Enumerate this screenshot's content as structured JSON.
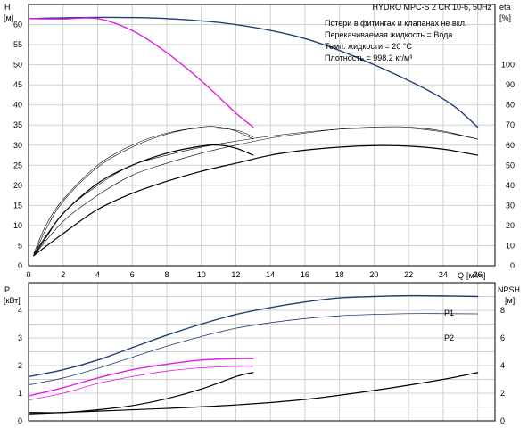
{
  "title": "HYDRO MPC-S 2 CR 10-6, 50Hz",
  "notes": [
    "Потери в фитингах и клапанах не вкл.",
    "Перекачиваемая жидкость = Вода",
    "Темп. жидкости = 20 °C",
    "Плотность = 998.2 кг/м³"
  ],
  "colors": {
    "navy": "#1f3f73",
    "black": "#000000",
    "magenta": "#e020e0",
    "grid": "#cfcfcf"
  },
  "chart_data": [
    {
      "type": "line",
      "name": "top",
      "x_label": "Q",
      "x_unit": "[м³/ч]",
      "x_range": [
        0,
        27
      ],
      "x_ticks": [
        "0",
        "2",
        "4",
        "6",
        "8",
        "10",
        "12",
        "14",
        "16",
        "18",
        "20",
        "22",
        "24",
        "26"
      ],
      "x_tick_values": [
        0,
        2,
        4,
        6,
        8,
        10,
        12,
        14,
        16,
        18,
        20,
        22,
        24,
        26
      ],
      "y_left_label": "H",
      "y_left_unit": "[м]",
      "y_left_range": [
        0,
        65
      ],
      "y_left_ticks": [
        "0",
        "5",
        "10",
        "15",
        "20",
        "25",
        "30",
        "35",
        "40",
        "45",
        "50",
        "55",
        "60"
      ],
      "y_right_label": "eta",
      "y_right_unit": "[%]",
      "y_right_range": [
        0,
        130
      ],
      "y_right_ticks": [
        "0",
        "10",
        "20",
        "30",
        "40",
        "50",
        "60",
        "70",
        "80",
        "90",
        "100"
      ],
      "series": [
        {
          "color": "navy",
          "width": 1.4,
          "axis": "left",
          "points": [
            [
              0,
              61.5
            ],
            [
              4,
              61.8
            ],
            [
              8,
              61.5
            ],
            [
              12,
              60
            ],
            [
              16,
              56.5
            ],
            [
              20,
              50
            ],
            [
              24,
              41.5
            ],
            [
              26,
              34.5
            ]
          ]
        },
        {
          "color": "magenta",
          "width": 1.4,
          "axis": "left",
          "points": [
            [
              0,
              61.5
            ],
            [
              2,
              61.4
            ],
            [
              4,
              61.5
            ],
            [
              6,
              58.5
            ],
            [
              8,
              53
            ],
            [
              10,
              46
            ],
            [
              12,
              38
            ],
            [
              13,
              34.5
            ]
          ]
        },
        {
          "color": "black",
          "width": 1.2,
          "axis": "right",
          "points": [
            [
              0.3,
              5
            ],
            [
              1,
              14
            ],
            [
              2,
              26
            ],
            [
              4,
              41
            ],
            [
              6,
              50
            ],
            [
              8,
              56
            ],
            [
              10,
              59.5
            ],
            [
              11,
              60
            ],
            [
              12,
              58.5
            ],
            [
              13,
              55
            ]
          ]
        },
        {
          "color": "black",
          "width": 0.6,
          "axis": "right",
          "points": [
            [
              0.3,
              5
            ],
            [
              1,
              18
            ],
            [
              2,
              32
            ],
            [
              4,
              49
            ],
            [
              6,
              59
            ],
            [
              8,
              65.5
            ],
            [
              10,
              69
            ],
            [
              11,
              69
            ],
            [
              12,
              67
            ],
            [
              13,
              63
            ]
          ]
        },
        {
          "color": "black",
          "width": 1.2,
          "axis": "right",
          "points": [
            [
              0.3,
              5
            ],
            [
              2,
              16
            ],
            [
              4,
              28
            ],
            [
              6,
              36
            ],
            [
              8,
              42
            ],
            [
              10,
              47
            ],
            [
              12,
              51
            ],
            [
              14,
              55
            ],
            [
              16,
              57.5
            ],
            [
              18,
              59
            ],
            [
              20,
              59.8
            ],
            [
              22,
              59.5
            ],
            [
              24,
              58
            ],
            [
              26,
              55
            ]
          ]
        },
        {
          "color": "black",
          "width": 0.6,
          "axis": "right",
          "points": [
            [
              0.3,
              5
            ],
            [
              2,
              22
            ],
            [
              4,
              35
            ],
            [
              6,
              45
            ],
            [
              8,
              51
            ],
            [
              10,
              56
            ],
            [
              12,
              60
            ],
            [
              14,
              63.5
            ],
            [
              16,
              66
            ],
            [
              18,
              68
            ],
            [
              20,
              69
            ],
            [
              22,
              69
            ],
            [
              24,
              67
            ],
            [
              26,
              63
            ]
          ]
        },
        {
          "color": "black",
          "width": 0.6,
          "axis": "right",
          "points": [
            [
              0.3,
              6
            ],
            [
              1,
              20
            ],
            [
              2,
              33
            ],
            [
              4,
              50
            ],
            [
              6,
              60
            ],
            [
              8,
              66
            ],
            [
              10,
              68.5
            ],
            [
              12,
              67.5
            ],
            [
              13,
              64
            ]
          ]
        },
        {
          "color": "black",
          "width": 0.6,
          "axis": "right",
          "points": [
            [
              0.3,
              6
            ],
            [
              2,
              26
            ],
            [
              4,
              40
            ],
            [
              6,
              50
            ],
            [
              8,
              55
            ],
            [
              10,
              59
            ],
            [
              12,
              62
            ],
            [
              14,
              64.5
            ],
            [
              16,
              66.5
            ],
            [
              18,
              68
            ],
            [
              20,
              68.5
            ],
            [
              22,
              68.5
            ],
            [
              24,
              66.5
            ],
            [
              26,
              63
            ]
          ]
        }
      ]
    },
    {
      "type": "line",
      "name": "bottom",
      "x_range": [
        0,
        27
      ],
      "y_left_label": "P",
      "y_left_unit": "[кВт]",
      "y_left_range": [
        0,
        5
      ],
      "y_left_ticks": [
        "0",
        "1",
        "2",
        "3",
        "4"
      ],
      "y_right_label": "NPSH",
      "y_right_unit": "[м]",
      "y_right_range": [
        0,
        10
      ],
      "y_right_ticks": [
        "0",
        "2",
        "4",
        "6",
        "8"
      ],
      "series": [
        {
          "color": "navy",
          "width": 1.4,
          "axis": "left",
          "label": "P1",
          "points": [
            [
              0,
              1.6
            ],
            [
              2,
              1.85
            ],
            [
              4,
              2.2
            ],
            [
              6,
              2.65
            ],
            [
              8,
              3.1
            ],
            [
              10,
              3.5
            ],
            [
              12,
              3.85
            ],
            [
              14,
              4.1
            ],
            [
              16,
              4.3
            ],
            [
              18,
              4.45
            ],
            [
              20,
              4.5
            ],
            [
              22,
              4.53
            ],
            [
              24,
              4.52
            ],
            [
              26,
              4.5
            ]
          ]
        },
        {
          "color": "navy",
          "width": 0.8,
          "axis": "left",
          "label": "P2",
          "points": [
            [
              0,
              1.3
            ],
            [
              2,
              1.55
            ],
            [
              4,
              1.9
            ],
            [
              6,
              2.3
            ],
            [
              8,
              2.7
            ],
            [
              10,
              3.05
            ],
            [
              12,
              3.35
            ],
            [
              14,
              3.55
            ],
            [
              16,
              3.7
            ],
            [
              18,
              3.8
            ],
            [
              20,
              3.85
            ],
            [
              22,
              3.88
            ],
            [
              24,
              3.88
            ],
            [
              26,
              3.87
            ]
          ]
        },
        {
          "color": "magenta",
          "width": 1.4,
          "axis": "left",
          "points": [
            [
              0,
              0.9
            ],
            [
              2,
              1.2
            ],
            [
              4,
              1.55
            ],
            [
              6,
              1.85
            ],
            [
              8,
              2.05
            ],
            [
              10,
              2.2
            ],
            [
              12,
              2.25
            ],
            [
              13,
              2.25
            ]
          ]
        },
        {
          "color": "magenta",
          "width": 0.8,
          "axis": "left",
          "points": [
            [
              0,
              0.75
            ],
            [
              2,
              1.0
            ],
            [
              4,
              1.35
            ],
            [
              6,
              1.6
            ],
            [
              8,
              1.8
            ],
            [
              10,
              1.92
            ],
            [
              12,
              1.97
            ],
            [
              13,
              1.97
            ]
          ]
        },
        {
          "color": "black",
          "width": 1.2,
          "axis": "right",
          "points": [
            [
              0,
              0.6
            ],
            [
              2,
              0.6
            ],
            [
              4,
              0.8
            ],
            [
              6,
              1.1
            ],
            [
              8,
              1.6
            ],
            [
              10,
              2.3
            ],
            [
              12,
              3.2
            ],
            [
              13,
              3.5
            ]
          ]
        },
        {
          "color": "black",
          "width": 1.2,
          "axis": "right",
          "points": [
            [
              0,
              0.5
            ],
            [
              4,
              0.7
            ],
            [
              8,
              0.9
            ],
            [
              12,
              1.15
            ],
            [
              16,
              1.55
            ],
            [
              20,
              2.2
            ],
            [
              24,
              3.0
            ],
            [
              26,
              3.5
            ]
          ]
        }
      ]
    }
  ]
}
